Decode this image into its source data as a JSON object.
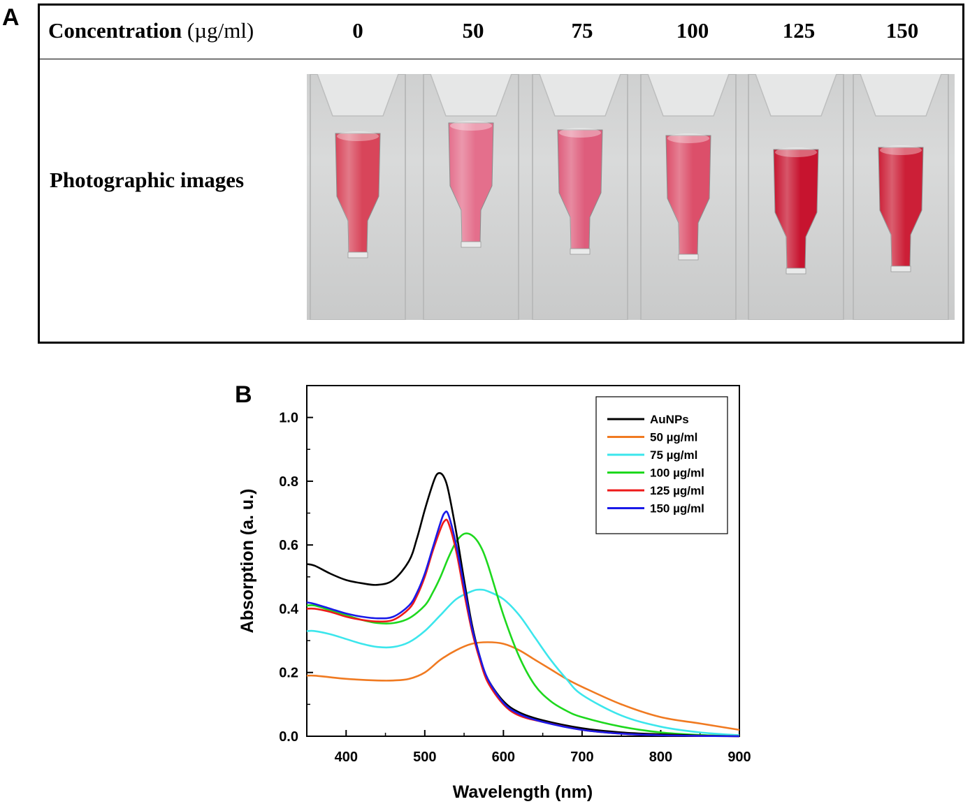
{
  "panel_a": {
    "letter": "A",
    "concentration_label": "Concentration",
    "concentration_unit": "(µg/ml)",
    "concentrations": [
      "0",
      "50",
      "75",
      "100",
      "125",
      "150"
    ],
    "photo_label": "Photographic images",
    "cuvette_colors": [
      "#d8455a",
      "#e46f8c",
      "#de5d7c",
      "#dc4f6a",
      "#c7142f",
      "#cc1f37"
    ]
  },
  "chart_data": {
    "type": "line",
    "panel_letter": "B",
    "title": "",
    "xlabel": "Wavelength (nm)",
    "ylabel": "Absorption (a. u.)",
    "xlim": [
      350,
      900
    ],
    "ylim": [
      0.0,
      1.1
    ],
    "x_ticks": [
      "400",
      "500",
      "600",
      "700",
      "800",
      "900"
    ],
    "y_ticks": [
      "0.0",
      "0.2",
      "0.4",
      "0.6",
      "0.8",
      "1.0"
    ],
    "legend_position": "top-right",
    "series": [
      {
        "name": "AuNPs",
        "color": "#000000",
        "x": [
          350,
          360,
          380,
          400,
          420,
          440,
          460,
          480,
          490,
          500,
          510,
          515,
          520,
          525,
          530,
          540,
          550,
          560,
          570,
          580,
          600,
          620,
          650,
          700,
          750,
          800,
          850,
          900
        ],
        "y": [
          0.54,
          0.535,
          0.51,
          0.49,
          0.48,
          0.475,
          0.49,
          0.55,
          0.62,
          0.71,
          0.79,
          0.82,
          0.825,
          0.81,
          0.77,
          0.64,
          0.49,
          0.35,
          0.25,
          0.18,
          0.11,
          0.075,
          0.05,
          0.025,
          0.012,
          0.006,
          0.002,
          0.0
        ]
      },
      {
        "name": "50 µg/ml",
        "color": "#f07a21",
        "x": [
          350,
          360,
          380,
          400,
          440,
          460,
          480,
          500,
          520,
          540,
          560,
          580,
          600,
          620,
          640,
          660,
          680,
          700,
          750,
          800,
          850,
          900
        ],
        "y": [
          0.19,
          0.19,
          0.185,
          0.18,
          0.175,
          0.175,
          0.18,
          0.2,
          0.24,
          0.27,
          0.29,
          0.295,
          0.29,
          0.27,
          0.24,
          0.21,
          0.18,
          0.155,
          0.1,
          0.06,
          0.04,
          0.02
        ]
      },
      {
        "name": "75 µg/ml",
        "color": "#3ce6ec",
        "x": [
          350,
          360,
          380,
          400,
          420,
          440,
          460,
          480,
          500,
          520,
          540,
          560,
          570,
          580,
          600,
          620,
          640,
          660,
          680,
          700,
          750,
          800,
          850,
          900
        ],
        "y": [
          0.33,
          0.33,
          0.32,
          0.305,
          0.29,
          0.28,
          0.28,
          0.295,
          0.33,
          0.38,
          0.43,
          0.455,
          0.46,
          0.455,
          0.43,
          0.38,
          0.31,
          0.24,
          0.18,
          0.13,
          0.065,
          0.03,
          0.012,
          0.003
        ]
      },
      {
        "name": "100 µg/ml",
        "color": "#1ed81e",
        "x": [
          350,
          360,
          380,
          400,
          420,
          440,
          460,
          480,
          500,
          510,
          520,
          530,
          540,
          550,
          560,
          570,
          580,
          600,
          620,
          640,
          660,
          680,
          700,
          750,
          800,
          850,
          900
        ],
        "y": [
          0.41,
          0.41,
          0.395,
          0.38,
          0.365,
          0.355,
          0.355,
          0.37,
          0.41,
          0.45,
          0.5,
          0.56,
          0.61,
          0.635,
          0.63,
          0.6,
          0.54,
          0.38,
          0.25,
          0.16,
          0.11,
          0.08,
          0.06,
          0.03,
          0.012,
          0.004,
          0.0
        ]
      },
      {
        "name": "125 µg/ml",
        "color": "#ee1a1a",
        "x": [
          350,
          360,
          380,
          400,
          420,
          440,
          460,
          480,
          490,
          500,
          510,
          520,
          525,
          530,
          540,
          550,
          560,
          570,
          580,
          600,
          620,
          650,
          700,
          750,
          800,
          850,
          900
        ],
        "y": [
          0.4,
          0.4,
          0.39,
          0.375,
          0.365,
          0.36,
          0.365,
          0.4,
          0.44,
          0.5,
          0.58,
          0.65,
          0.675,
          0.67,
          0.58,
          0.45,
          0.33,
          0.24,
          0.17,
          0.1,
          0.065,
          0.045,
          0.02,
          0.008,
          0.003,
          0.001,
          0.0
        ]
      },
      {
        "name": "150 µg/ml",
        "color": "#1a1ae8",
        "x": [
          350,
          360,
          380,
          400,
          420,
          440,
          460,
          480,
          490,
          500,
          510,
          520,
          525,
          530,
          540,
          550,
          560,
          570,
          580,
          600,
          620,
          650,
          700,
          750,
          800,
          850,
          900
        ],
        "y": [
          0.42,
          0.415,
          0.4,
          0.385,
          0.375,
          0.37,
          0.375,
          0.41,
          0.45,
          0.51,
          0.59,
          0.67,
          0.7,
          0.695,
          0.6,
          0.47,
          0.34,
          0.25,
          0.18,
          0.105,
          0.07,
          0.045,
          0.02,
          0.008,
          0.003,
          0.001,
          0.0
        ]
      }
    ]
  }
}
